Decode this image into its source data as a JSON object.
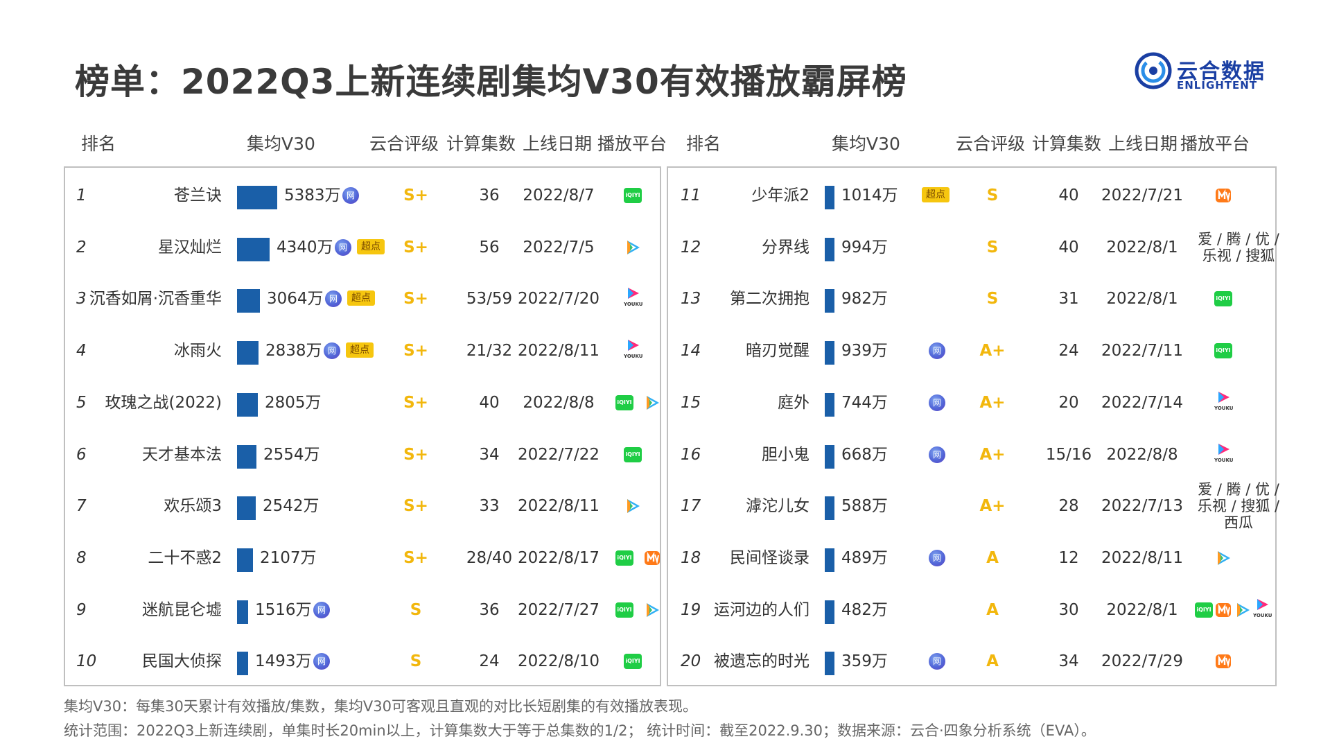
{
  "title": "榜单：2022Q3上新连续剧集均V30有效播放霸屏榜",
  "logo": {
    "cn": "云合数据",
    "en": "ENLIGHTENT"
  },
  "headers": {
    "rank": "排名",
    "v30": "集均V30",
    "grade": "云合评级",
    "episodes": "计算集数",
    "date": "上线日期",
    "platform": "播放平台"
  },
  "badges": {
    "net": "网",
    "super": "超点"
  },
  "platform_glyphs": {
    "iqiyi": "iQIYI",
    "youku": "YOUKU"
  },
  "chart_data": {
    "type": "bar",
    "unit": "万",
    "max_value": 5383,
    "rows": [
      {
        "rank": "1",
        "name": "苍兰诀",
        "value": 5383,
        "value_label": "5383万",
        "net": true,
        "super": false,
        "grade": "S+",
        "episodes": "36",
        "date": "2022/8/7",
        "platforms": [
          "iqiyi"
        ]
      },
      {
        "rank": "2",
        "name": "星汉灿烂",
        "value": 4340,
        "value_label": "4340万",
        "net": true,
        "super": true,
        "grade": "S+",
        "episodes": "56",
        "date": "2022/7/5",
        "platforms": [
          "tencent"
        ]
      },
      {
        "rank": "3",
        "name": "沉香如屑·沉香重华",
        "value": 3064,
        "value_label": "3064万",
        "net": true,
        "super": true,
        "grade": "S+",
        "episodes": "53/59",
        "date": "2022/7/20",
        "platforms": [
          "youku"
        ]
      },
      {
        "rank": "4",
        "name": "冰雨火",
        "value": 2838,
        "value_label": "2838万",
        "net": true,
        "super": true,
        "grade": "S+",
        "episodes": "21/32",
        "date": "2022/8/11",
        "platforms": [
          "youku"
        ]
      },
      {
        "rank": "5",
        "name": "玫瑰之战(2022)",
        "value": 2805,
        "value_label": "2805万",
        "net": false,
        "super": false,
        "grade": "S+",
        "episodes": "40",
        "date": "2022/8/8",
        "platforms": [
          "iqiyi",
          "tencent"
        ]
      },
      {
        "rank": "6",
        "name": "天才基本法",
        "value": 2554,
        "value_label": "2554万",
        "net": false,
        "super": false,
        "grade": "S+",
        "episodes": "34",
        "date": "2022/7/22",
        "platforms": [
          "iqiyi"
        ]
      },
      {
        "rank": "7",
        "name": "欢乐颂3",
        "value": 2542,
        "value_label": "2542万",
        "net": false,
        "super": false,
        "grade": "S+",
        "episodes": "33",
        "date": "2022/8/11",
        "platforms": [
          "tencent"
        ]
      },
      {
        "rank": "8",
        "name": "二十不惑2",
        "value": 2107,
        "value_label": "2107万",
        "net": false,
        "super": false,
        "grade": "S+",
        "episodes": "28/40",
        "date": "2022/8/17",
        "platforms": [
          "iqiyi",
          "mango"
        ]
      },
      {
        "rank": "9",
        "name": "迷航昆仑墟",
        "value": 1516,
        "value_label": "1516万",
        "net": true,
        "super": false,
        "grade": "S",
        "episodes": "36",
        "date": "2022/7/27",
        "platforms": [
          "iqiyi",
          "tencent"
        ]
      },
      {
        "rank": "10",
        "name": "民国大侦探",
        "value": 1493,
        "value_label": "1493万",
        "net": true,
        "super": false,
        "grade": "S",
        "episodes": "24",
        "date": "2022/8/10",
        "platforms": [
          "iqiyi"
        ]
      },
      {
        "rank": "11",
        "name": "少年派2",
        "value": 1014,
        "value_label": "1014万",
        "net": false,
        "super": true,
        "grade": "S",
        "episodes": "40",
        "date": "2022/7/21",
        "platforms": [
          "mango"
        ]
      },
      {
        "rank": "12",
        "name": "分界线",
        "value": 994,
        "value_label": "994万",
        "net": false,
        "super": false,
        "grade": "S",
        "episodes": "40",
        "date": "2022/8/1",
        "platforms": [],
        "platform_text": [
          "爱 / 腾 / 优 /",
          "乐视 / 搜狐"
        ]
      },
      {
        "rank": "13",
        "name": "第二次拥抱",
        "value": 982,
        "value_label": "982万",
        "net": false,
        "super": false,
        "grade": "S",
        "episodes": "31",
        "date": "2022/8/1",
        "platforms": [
          "iqiyi"
        ]
      },
      {
        "rank": "14",
        "name": "暗刃觉醒",
        "value": 939,
        "value_label": "939万",
        "net": true,
        "super": false,
        "grade": "A+",
        "episodes": "24",
        "date": "2022/7/11",
        "platforms": [
          "iqiyi"
        ]
      },
      {
        "rank": "15",
        "name": "庭外",
        "value": 744,
        "value_label": "744万",
        "net": true,
        "super": false,
        "grade": "A+",
        "episodes": "20",
        "date": "2022/7/14",
        "platforms": [
          "youku"
        ]
      },
      {
        "rank": "16",
        "name": "胆小鬼",
        "value": 668,
        "value_label": "668万",
        "net": true,
        "super": false,
        "grade": "A+",
        "episodes": "15/16",
        "date": "2022/8/8",
        "platforms": [
          "youku"
        ]
      },
      {
        "rank": "17",
        "name": "滹沱儿女",
        "value": 588,
        "value_label": "588万",
        "net": false,
        "super": false,
        "grade": "A+",
        "episodes": "28",
        "date": "2022/7/13",
        "platforms": [],
        "platform_text": [
          "爱 / 腾 / 优 /",
          "乐视 / 搜狐 /",
          "西瓜"
        ]
      },
      {
        "rank": "18",
        "name": "民间怪谈录",
        "value": 489,
        "value_label": "489万",
        "net": true,
        "super": false,
        "grade": "A",
        "episodes": "12",
        "date": "2022/8/11",
        "platforms": [
          "tencent"
        ]
      },
      {
        "rank": "19",
        "name": "运河边的人们",
        "value": 482,
        "value_label": "482万",
        "net": false,
        "super": false,
        "grade": "A",
        "episodes": "30",
        "date": "2022/8/1",
        "platforms": [
          "iqiyi",
          "mango",
          "tencent",
          "youku"
        ]
      },
      {
        "rank": "20",
        "name": "被遗忘的时光",
        "value": 359,
        "value_label": "359万",
        "net": true,
        "super": false,
        "grade": "A",
        "episodes": "34",
        "date": "2022/7/29",
        "platforms": [
          "mango"
        ]
      }
    ]
  },
  "footnotes": [
    "集均V30：每集30天累计有效播放/集数，集均V30可客观且直观的对比长短剧集的有效播放表现。",
    "统计范围：2022Q3上新连续剧，单集时长20min以上，计算集数大于等于总集数的1/2； 统计时间：截至2022.9.30；数据来源：云合·四象分析系统（EVA）。"
  ]
}
